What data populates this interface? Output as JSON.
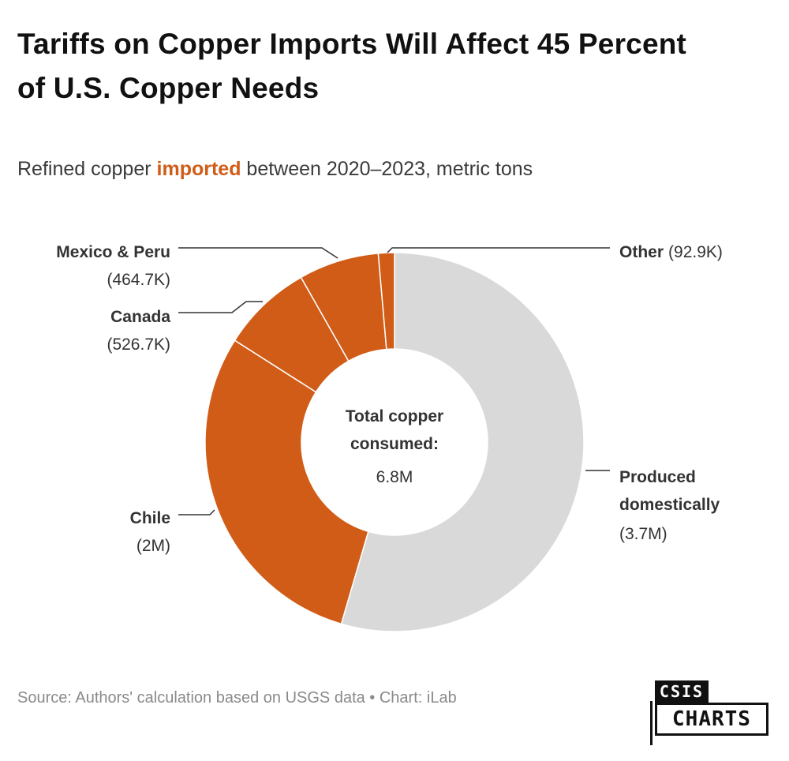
{
  "header": {
    "title": "Tariffs on Copper Imports Will Affect 45 Percent of U.S. Copper Needs",
    "subtitle_pre": "Refined copper ",
    "subtitle_highlight": "imported",
    "subtitle_post": " between 2020–2023, metric tons"
  },
  "colors": {
    "imported": "#d05c17",
    "domestic": "#d9d9d9",
    "leader": "#333333"
  },
  "chart_data": {
    "type": "pie",
    "donut": true,
    "slices": [
      {
        "name": "Produced domestically",
        "value": 3700000,
        "label": "(3.7M)",
        "group": "domestic"
      },
      {
        "name": "Chile",
        "value": 2000000,
        "label": "(2M)",
        "group": "imported"
      },
      {
        "name": "Canada",
        "value": 526700,
        "label": "(526.7K)",
        "group": "imported"
      },
      {
        "name": "Mexico & Peru",
        "value": 464700,
        "label": "(464.7K)",
        "group": "imported"
      },
      {
        "name": "Other",
        "value": 92900,
        "label": "(92.9K)",
        "group": "imported"
      }
    ],
    "center_label_line1": "Total copper",
    "center_label_line2": "consumed:",
    "center_value": "6.8M",
    "total": 6800000
  },
  "footer": {
    "source": "Source: Authors' calculation based on USGS data • Chart: iLab",
    "logo_top": "CSIS",
    "logo_bottom": "CHARTS"
  }
}
